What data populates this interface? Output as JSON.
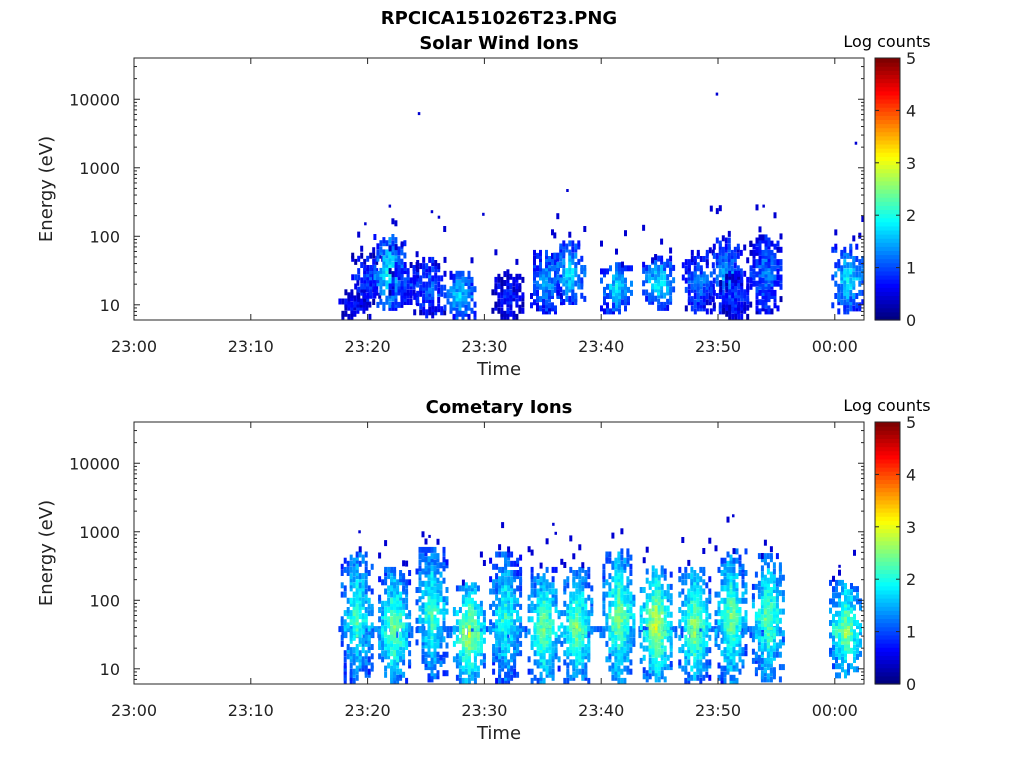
{
  "figure": {
    "filename": "RPCICA151026T23.PNG"
  },
  "chart_data": [
    {
      "type": "heatmap",
      "title": "Solar Wind Ions",
      "xlabel": "Time",
      "ylabel": "Energy (eV)",
      "x_range": [
        "23:00",
        "00:02"
      ],
      "x_ticks": [
        "23:00",
        "23:10",
        "23:20",
        "23:30",
        "23:40",
        "23:50",
        "00:00"
      ],
      "y_scale": "log",
      "y_range": [
        6,
        40000
      ],
      "y_ticks": [
        "10",
        "100",
        "1000",
        "10000"
      ],
      "colorbar": {
        "label": "Log counts",
        "range": [
          0,
          5
        ],
        "ticks": [
          "0",
          "1",
          "2",
          "3",
          "4",
          "5"
        ],
        "colormap": "jet"
      },
      "grid": false,
      "bursts": [
        {
          "t": 18.8,
          "e_lo": 6,
          "e_hi": 16,
          "peak": 0.7
        },
        {
          "t": 19.9,
          "e_lo": 11,
          "e_hi": 55,
          "peak": 1.0
        },
        {
          "t": 21.8,
          "e_lo": 9,
          "e_hi": 100,
          "peak": 2.0
        },
        {
          "t": 23.1,
          "e_lo": 11,
          "e_hi": 40,
          "peak": 1.1
        },
        {
          "t": 25.2,
          "e_lo": 7,
          "e_hi": 50,
          "peak": 1.2
        },
        {
          "t": 27.8,
          "e_lo": 6,
          "e_hi": 30,
          "peak": 1.8
        },
        {
          "t": 31.9,
          "e_lo": 6,
          "e_hi": 28,
          "peak": 0.8
        },
        {
          "t": 35.2,
          "e_lo": 8,
          "e_hi": 60,
          "peak": 1.5
        },
        {
          "t": 37.2,
          "e_lo": 11,
          "e_hi": 80,
          "peak": 1.8
        },
        {
          "t": 41.2,
          "e_lo": 8,
          "e_hi": 40,
          "peak": 1.8
        },
        {
          "t": 44.8,
          "e_lo": 9,
          "e_hi": 48,
          "peak": 2.0
        },
        {
          "t": 48.2,
          "e_lo": 8,
          "e_hi": 60,
          "peak": 1.3
        },
        {
          "t": 50.6,
          "e_lo": 8,
          "e_hi": 95,
          "peak": 1.5
        },
        {
          "t": 51.4,
          "e_lo": 6,
          "e_hi": 30,
          "peak": 0.9
        },
        {
          "t": 54.0,
          "e_lo": 8,
          "e_hi": 100,
          "peak": 1.3
        },
        {
          "t": 61.0,
          "e_lo": 8,
          "e_hi": 75,
          "peak": 1.9
        }
      ],
      "outliers": [
        {
          "t": 24.3,
          "e": 6500
        },
        {
          "t": 49.8,
          "e": 12500
        },
        {
          "t": 61.7,
          "e": 2400
        },
        {
          "t": 37.0,
          "e": 490
        },
        {
          "t": 21.8,
          "e": 290
        },
        {
          "t": 25.4,
          "e": 240
        },
        {
          "t": 26.0,
          "e": 200
        },
        {
          "t": 29.8,
          "e": 220
        },
        {
          "t": 53.8,
          "e": 290
        },
        {
          "t": 19.7,
          "e": 160
        }
      ]
    },
    {
      "type": "heatmap",
      "title": "Cometary Ions",
      "xlabel": "Time",
      "ylabel": "Energy (eV)",
      "x_range": [
        "23:00",
        "00:02"
      ],
      "x_ticks": [
        "23:00",
        "23:10",
        "23:20",
        "23:30",
        "23:40",
        "23:50",
        "00:00"
      ],
      "y_scale": "log",
      "y_range": [
        6,
        40000
      ],
      "y_ticks": [
        "10",
        "100",
        "1000",
        "10000"
      ],
      "colorbar": {
        "label": "Log counts",
        "range": [
          0,
          5
        ],
        "ticks": [
          "0",
          "1",
          "2",
          "3",
          "4",
          "5"
        ],
        "colormap": "jet"
      },
      "grid": false,
      "band": {
        "t_start": 17.5,
        "t_end": 55.2,
        "e_lo": 34,
        "e_hi": 42,
        "level": 0.9
      },
      "bursts": [
        {
          "t": 19.0,
          "e_lo": 6,
          "e_hi": 500,
          "peak": 2.3
        },
        {
          "t": 22.2,
          "e_lo": 6,
          "e_hi": 280,
          "peak": 2.6
        },
        {
          "t": 25.4,
          "e_lo": 7,
          "e_hi": 600,
          "peak": 2.3
        },
        {
          "t": 28.6,
          "e_lo": 6,
          "e_hi": 180,
          "peak": 2.9
        },
        {
          "t": 31.7,
          "e_lo": 6,
          "e_hi": 500,
          "peak": 2.2
        },
        {
          "t": 35.0,
          "e_lo": 6,
          "e_hi": 280,
          "peak": 2.6
        },
        {
          "t": 37.8,
          "e_lo": 6,
          "e_hi": 280,
          "peak": 2.6
        },
        {
          "t": 41.4,
          "e_lo": 6,
          "e_hi": 550,
          "peak": 2.6
        },
        {
          "t": 44.6,
          "e_lo": 7,
          "e_hi": 300,
          "peak": 3.0
        },
        {
          "t": 47.9,
          "e_lo": 6,
          "e_hi": 300,
          "peak": 2.7
        },
        {
          "t": 51.0,
          "e_lo": 6,
          "e_hi": 550,
          "peak": 2.5
        },
        {
          "t": 54.2,
          "e_lo": 7,
          "e_hi": 450,
          "peak": 2.5
        },
        {
          "t": 60.8,
          "e_lo": 8,
          "e_hi": 180,
          "peak": 2.7
        }
      ],
      "outliers": [
        {
          "t": 19.2,
          "e": 1050
        },
        {
          "t": 25.2,
          "e": 900
        },
        {
          "t": 35.8,
          "e": 1350
        },
        {
          "t": 36.0,
          "e": 1000
        },
        {
          "t": 51.2,
          "e": 1800
        },
        {
          "t": 60.3,
          "e": 330
        }
      ]
    }
  ]
}
